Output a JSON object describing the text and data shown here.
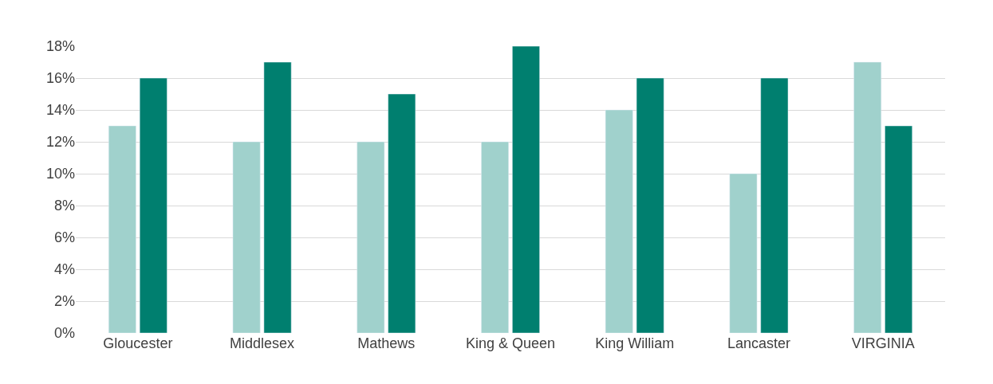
{
  "chart_data": {
    "type": "bar",
    "categories": [
      "Gloucester",
      "Middlesex",
      "Mathews",
      "King & Queen",
      "King William",
      "Lancaster",
      "VIRGINIA"
    ],
    "series": [
      {
        "color": "#a0d1cc",
        "values": [
          13,
          12,
          12,
          12,
          14,
          10,
          17
        ]
      },
      {
        "color": "#007f6f",
        "values": [
          16,
          17,
          15,
          18,
          16,
          16,
          13
        ]
      }
    ],
    "ylim": [
      0,
      18
    ],
    "yticks": [
      {
        "value": 0,
        "label": "0%"
      },
      {
        "value": 2,
        "label": "2%"
      },
      {
        "value": 4,
        "label": "4%"
      },
      {
        "value": 6,
        "label": "6%"
      },
      {
        "value": 8,
        "label": "8%"
      },
      {
        "value": 10,
        "label": "10%"
      },
      {
        "value": 12,
        "label": "12%"
      },
      {
        "value": 14,
        "label": "14%"
      },
      {
        "value": 16,
        "label": "16%"
      },
      {
        "value": 18,
        "label": "18%"
      }
    ],
    "grid": "y"
  }
}
